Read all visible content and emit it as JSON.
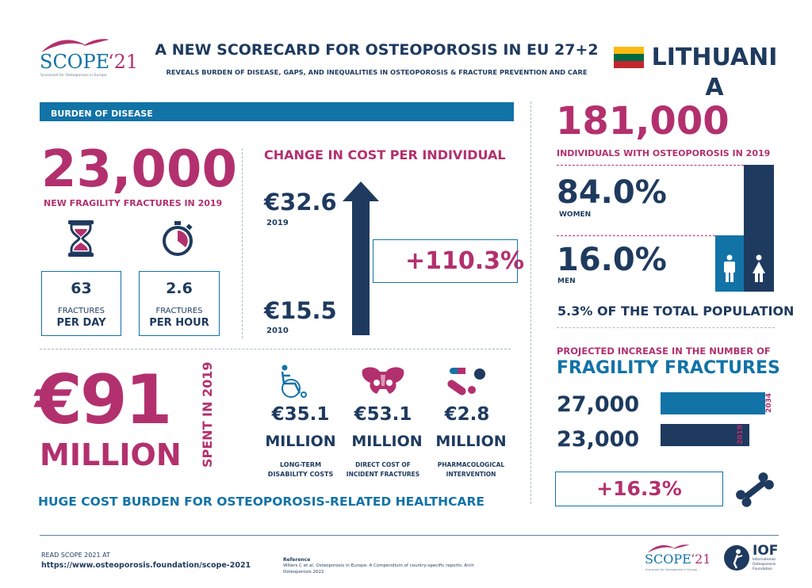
{
  "header": {
    "logo_text": "SCOPE",
    "logo_suffix": "‘21",
    "logo_tagline": "Scorecard for Osteoporosis in Europe",
    "title": "A NEW SCORECARD FOR OSTEOPOROSIS IN EU 27+2",
    "subtitle": "REVEALS BURDEN OF DISEASE, GAPS, AND INEQUALITIES IN OSTEOPOROSIS & FRACTURE PREVENTION AND CARE",
    "country": "LITHUANIA",
    "flag_colors": [
      "#fdb913",
      "#006a44",
      "#c1272d"
    ]
  },
  "burden": {
    "banner": "BURDEN OF DISEASE",
    "fractures_value": "23,000",
    "fractures_label": "NEW FRAGILITY FRACTURES IN 2019",
    "per_day_value": "63",
    "per_day_label1": "FRACTURES",
    "per_day_label2": "PER DAY",
    "per_hour_value": "2.6",
    "per_hour_label1": "FRACTURES",
    "per_hour_label2": "PER HOUR",
    "icons": [
      "hourglass-icon",
      "stopwatch-icon"
    ]
  },
  "cost_change": {
    "title": "CHANGE IN COST PER INDIVIDUAL",
    "value_2019": "€32.6",
    "year_2019": "2019",
    "value_2010": "€15.5",
    "year_2010": "2010",
    "increase": "+110.3%"
  },
  "spending": {
    "total_value": "€91",
    "total_unit": "MILLION",
    "spent_label": "SPENT IN 2019",
    "items": [
      {
        "value": "€35.1",
        "unit": "MILLION",
        "label1": "LONG-TERM",
        "label2": "DISABILITY COSTS",
        "icon": "wheelchair-icon"
      },
      {
        "value": "€53.1",
        "unit": "MILLION",
        "label1": "DIRECT COST OF",
        "label2": "INCIDENT FRACTURES",
        "icon": "pelvis-icon"
      },
      {
        "value": "€2.8",
        "unit": "MILLION",
        "label1": "PHARMACOLOGICAL",
        "label2": "INTERVENTION",
        "icon": "pills-icon"
      }
    ],
    "footer": "HUGE COST BURDEN FOR OSTEOPOROSIS-RELATED HEALTHCARE"
  },
  "population": {
    "value": "181,000",
    "label": "INDIVIDUALS WITH OSTEOPOROSIS IN 2019",
    "women_pct": "84.0%",
    "women_label": "WOMEN",
    "men_pct": "16.0%",
    "men_label": "MEN",
    "women_share": 84.0,
    "men_share": 16.0,
    "total_pop": "5.3% OF THE TOTAL POPULATION"
  },
  "projection": {
    "title1": "PROJECTED INCREASE IN THE NUMBER OF",
    "title2": "FRAGILITY FRACTURES",
    "value_2034": "27,000",
    "year_2034": "2034",
    "value_2019": "23,000",
    "year_2019": "2019",
    "increase": "+16.3%",
    "bar_2034": 27000,
    "bar_2019": 23000
  },
  "footer": {
    "read_label": "READ SCOPE 2021 AT",
    "url": "https://www.osteoporosis.foundation/scope-2021",
    "ref_title": "Reference",
    "ref_line1": "Willers C et al. Osteoporosis in Europe: A Compendium of country-specific reports. Arch",
    "ref_line2": "Osteoporosis 2022",
    "iof_text": "IOF",
    "iof_line1": "International",
    "iof_line2": "Osteoporosis",
    "iof_line3": "Foundation"
  }
}
